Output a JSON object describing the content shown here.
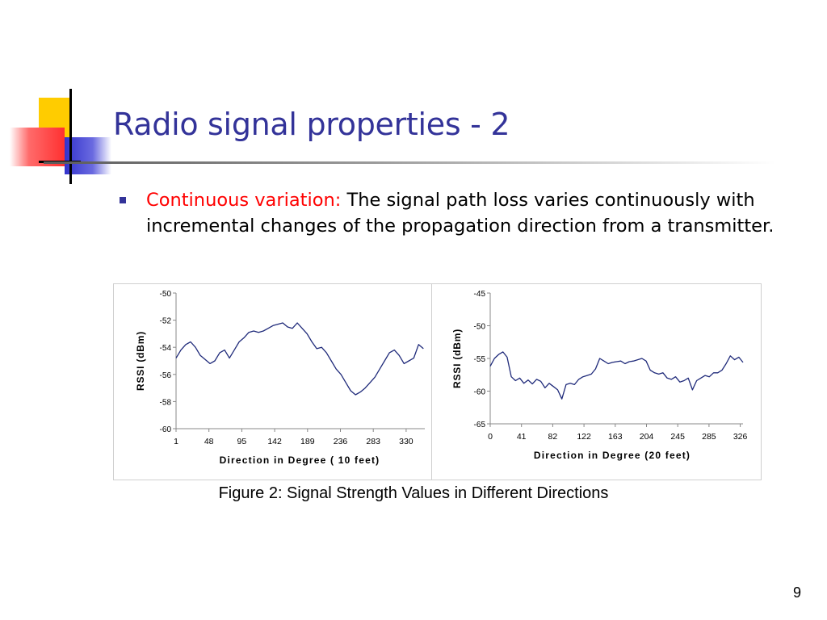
{
  "slide": {
    "title": "Radio signal properties - 2",
    "bullet": {
      "lead": "Continuous variation:",
      "text": " The signal path loss varies continuously with incremental changes of the propagation direction from a transmitter."
    },
    "caption": "Figure 2: Signal Strength Values in Different Directions",
    "page_number": "9"
  },
  "colors": {
    "title": "#333399",
    "lead": "#ff0000",
    "series": "#1f2a7a",
    "deco_yellow": "#ffcc00",
    "deco_red": "#ff3b3b",
    "deco_blue": "#3333cc"
  },
  "chart_data": [
    {
      "type": "line",
      "xlabel": "Direction in Degree ( 10 feet)",
      "ylabel": "RSSI (dBm)",
      "x_tick_labels": [
        "1",
        "48",
        "95",
        "142",
        "189",
        "236",
        "283",
        "330"
      ],
      "y_tick_labels": [
        "-50",
        "-52",
        "-54",
        "-56",
        "-58",
        "-60"
      ],
      "xlim": [
        1,
        360
      ],
      "ylim": [
        -60,
        -50
      ],
      "series": [
        {
          "x": [
            1,
            8,
            15,
            22,
            29,
            36,
            43,
            50,
            57,
            64,
            71,
            78,
            85,
            92,
            99,
            106,
            113,
            120,
            127,
            134,
            141,
            148,
            155,
            162,
            169,
            176,
            183,
            190,
            197,
            204,
            211,
            218,
            225,
            232,
            239,
            246,
            253,
            260,
            267,
            274,
            281,
            288,
            295,
            302,
            309,
            316,
            323,
            330,
            337,
            344,
            351,
            358
          ],
          "y": [
            -54.8,
            -54.2,
            -53.8,
            -53.6,
            -54.0,
            -54.6,
            -54.9,
            -55.2,
            -55.0,
            -54.4,
            -54.2,
            -54.8,
            -54.2,
            -53.6,
            -53.3,
            -52.9,
            -52.8,
            -52.9,
            -52.8,
            -52.6,
            -52.4,
            -52.3,
            -52.2,
            -52.5,
            -52.6,
            -52.2,
            -52.6,
            -53.0,
            -53.6,
            -54.1,
            -54.0,
            -54.4,
            -55.0,
            -55.6,
            -56.0,
            -56.6,
            -57.2,
            -57.5,
            -57.3,
            -57.0,
            -56.6,
            -56.2,
            -55.6,
            -55.0,
            -54.4,
            -54.2,
            -54.6,
            -55.2,
            -55.0,
            -54.8,
            -53.8,
            -54.1
          ]
        }
      ]
    },
    {
      "type": "line",
      "xlabel": "Direction in Degree (20 feet)",
      "ylabel": "RSSI (dBm)",
      "x_tick_labels": [
        "0",
        "41",
        "82",
        "122",
        "163",
        "204",
        "245",
        "285",
        "326"
      ],
      "y_tick_labels": [
        "-45",
        "-50",
        "-55",
        "-60",
        "-65"
      ],
      "xlim": [
        0,
        360
      ],
      "ylim": [
        -65,
        -45
      ],
      "series": [
        {
          "x": [
            0,
            6,
            12,
            18,
            24,
            30,
            36,
            42,
            48,
            54,
            60,
            66,
            72,
            78,
            84,
            90,
            96,
            102,
            108,
            114,
            120,
            126,
            132,
            138,
            144,
            150,
            156,
            162,
            168,
            174,
            180,
            186,
            192,
            198,
            204,
            210,
            216,
            222,
            228,
            234,
            240,
            246,
            252,
            258,
            264,
            270,
            276,
            282,
            288,
            294,
            300,
            306,
            312,
            318,
            324,
            330,
            336,
            342,
            348,
            354,
            360
          ],
          "y": [
            -56.2,
            -55.0,
            -54.4,
            -54.0,
            -54.8,
            -57.8,
            -58.4,
            -58.0,
            -58.8,
            -58.3,
            -58.9,
            -58.2,
            -58.5,
            -59.5,
            -58.8,
            -59.3,
            -59.8,
            -61.2,
            -59.0,
            -58.8,
            -59.0,
            -58.2,
            -57.8,
            -57.6,
            -57.4,
            -56.6,
            -55.0,
            -55.4,
            -55.8,
            -55.6,
            -55.5,
            -55.4,
            -55.8,
            -55.5,
            -55.4,
            -55.2,
            -55.0,
            -55.4,
            -56.8,
            -57.2,
            -57.4,
            -57.2,
            -58.0,
            -58.2,
            -57.8,
            -58.6,
            -58.4,
            -58.0,
            -59.8,
            -58.4,
            -58.0,
            -57.6,
            -57.8,
            -57.2,
            -57.2,
            -56.8,
            -55.8,
            -54.6,
            -55.2,
            -54.8,
            -55.6
          ]
        }
      ]
    }
  ]
}
